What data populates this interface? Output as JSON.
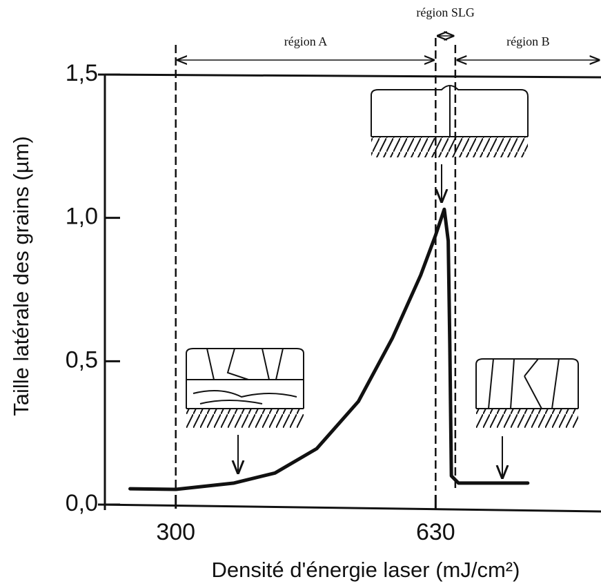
{
  "chart_data": {
    "type": "line",
    "x_label": "Densité d'énergie laser (mJ/cm²)",
    "y_label": "Taille latérale des grains (µm)",
    "xlim": [
      210,
      840
    ],
    "ylim": [
      0,
      1.5
    ],
    "xticks": [
      300,
      630
    ],
    "yticks": [
      {
        "value": 0,
        "label": "0,0"
      },
      {
        "value": 0.5,
        "label": "0,5"
      },
      {
        "value": 1,
        "label": "1,0"
      },
      {
        "value": 1.5,
        "label": "1,5"
      }
    ],
    "series": [
      {
        "color": "#111111",
        "x": [
          242,
          300,
          374,
          426,
          479,
          532,
          575,
          611,
          630,
          641,
          646,
          648,
          650,
          659,
          747
        ],
        "values": [
          0.055,
          0.053,
          0.075,
          0.11,
          0.195,
          0.36,
          0.58,
          0.8,
          0.94,
          1.03,
          0.92,
          0.56,
          0.1,
          0.075,
          0.075
        ]
      }
    ],
    "regions": [
      {
        "label": "région A",
        "from": 300,
        "to": 630
      },
      {
        "label": "région SLG",
        "from": 630,
        "to": 655
      },
      {
        "label": "région B",
        "from": 655,
        "to": 840
      }
    ]
  }
}
